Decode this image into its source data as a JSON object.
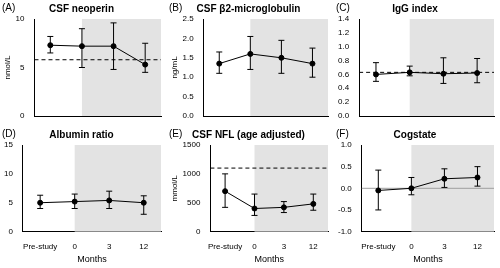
{
  "chart_data": [
    {
      "type": "line",
      "label": "(A)",
      "title": "CSF neoperin",
      "y_label": "nmol/L",
      "categories": [
        "Pre-study",
        "0",
        "3",
        "12"
      ],
      "values": [
        7.3,
        7.2,
        7.2,
        5.3
      ],
      "error_low": [
        6.5,
        5.0,
        4.8,
        4.5
      ],
      "error_high": [
        8.2,
        9.0,
        9.6,
        7.5
      ],
      "color": "#000000",
      "marker": "circle",
      "ylim": [
        0,
        10
      ],
      "yticks": [
        0,
        5,
        10
      ],
      "reference_line": {
        "value": 5.8,
        "line_style": "dashed",
        "color": "#000000"
      },
      "shaded_region": {
        "from": "0",
        "color": "#e3e3e3"
      },
      "grid": false,
      "tick_labels": "y"
    },
    {
      "type": "line",
      "label": "(B)",
      "title": "CSF β2-microglobulin",
      "y_label": "ng/mL",
      "categories": [
        "Pre-study",
        "0",
        "3",
        "12"
      ],
      "values": [
        1.35,
        1.6,
        1.5,
        1.35
      ],
      "error_low": [
        1.1,
        1.2,
        1.1,
        1.0
      ],
      "error_high": [
        1.65,
        2.05,
        1.95,
        1.75
      ],
      "color": "#000000",
      "marker": "circle",
      "ylim": [
        0,
        2.5
      ],
      "yticks": [
        {
          "value": 0,
          "label": "0.0"
        },
        {
          "value": 0.5,
          "label": "0.5"
        },
        {
          "value": 1,
          "label": "1.0"
        },
        {
          "value": 1.5,
          "label": "1.5"
        },
        {
          "value": 2,
          "label": "2.0"
        },
        {
          "value": 2.5,
          "label": "2.5"
        }
      ],
      "shaded_region": {
        "from": "0",
        "color": "#e3e3e3"
      },
      "grid": false,
      "tick_labels": "y"
    },
    {
      "type": "line",
      "label": "(C)",
      "title": "IgG index",
      "categories": [
        "Pre-study",
        "0",
        "3",
        "12"
      ],
      "values": [
        0.6,
        0.63,
        0.61,
        0.62
      ],
      "error_low": [
        0.5,
        0.58,
        0.47,
        0.48
      ],
      "error_high": [
        0.77,
        0.72,
        0.84,
        0.83
      ],
      "color": "#000000",
      "marker": "circle",
      "ylim": [
        0,
        1.4
      ],
      "yticks": [
        {
          "value": 0,
          "label": "0.0"
        },
        {
          "value": 0.2,
          "label": "0.2"
        },
        {
          "value": 0.4,
          "label": "0.4"
        },
        {
          "value": 0.6,
          "label": "0.6"
        },
        {
          "value": 0.8,
          "label": "0.8"
        },
        {
          "value": 1,
          "label": "1.0"
        },
        {
          "value": 1.2,
          "label": "1.2"
        },
        {
          "value": 1.4,
          "label": "1.4"
        }
      ],
      "reference_line": {
        "value": 0.63,
        "line_style": "dashed",
        "color": "#000000"
      },
      "shaded_region": {
        "from": "0",
        "color": "#e3e3e3"
      },
      "grid": false,
      "tick_labels": "y"
    },
    {
      "type": "line",
      "label": "(D)",
      "title": "Albumin ratio",
      "x_label": "Months",
      "categories": [
        "Pre-study",
        "0",
        "3",
        "12"
      ],
      "values": [
        5.0,
        5.2,
        5.4,
        5.0
      ],
      "error_low": [
        4.0,
        4.0,
        4.0,
        3.0
      ],
      "error_high": [
        6.3,
        6.5,
        7.0,
        6.2
      ],
      "color": "#000000",
      "marker": "circle",
      "ylim": [
        0,
        15
      ],
      "yticks": [
        0,
        5,
        10,
        15
      ],
      "shaded_region": {
        "from": "0",
        "color": "#e3e3e3"
      },
      "grid": false
    },
    {
      "type": "line",
      "label": "(E)",
      "title": "CSF NFL (age adjusted)",
      "x_label": "Months",
      "y_label": "mmol/L",
      "categories": [
        "Pre-study",
        "0",
        "3",
        "12"
      ],
      "values": [
        700,
        400,
        420,
        480
      ],
      "error_low": [
        420,
        280,
        330,
        370
      ],
      "error_high": [
        1000,
        650,
        520,
        650
      ],
      "color": "#000000",
      "marker": "circle",
      "ylim": [
        0,
        1500
      ],
      "yticks": [
        0,
        500,
        1000,
        1500
      ],
      "reference_line": {
        "value": 1100,
        "line_style": "dashed",
        "color": "#000000"
      },
      "shaded_region": {
        "from": "0",
        "color": "#e3e3e3"
      },
      "grid": false
    },
    {
      "type": "line",
      "label": "(F)",
      "title": "Cogstate",
      "x_label": "Months",
      "categories": [
        "Pre-study",
        "0",
        "3",
        "12"
      ],
      "values": [
        -0.05,
        0.0,
        0.22,
        0.25
      ],
      "error_low": [
        -0.5,
        -0.15,
        0.02,
        0.05
      ],
      "error_high": [
        0.42,
        0.25,
        0.45,
        0.5
      ],
      "color": "#000000",
      "marker": "circle",
      "ylim": [
        -1,
        1
      ],
      "yticks": [
        {
          "value": -1,
          "label": "-1.0"
        },
        {
          "value": -0.5,
          "label": "-0.5"
        },
        {
          "value": 0,
          "label": "0.0"
        },
        {
          "value": 0.5,
          "label": "0.5"
        },
        {
          "value": 1,
          "label": "1.0"
        }
      ],
      "reference_line": {
        "value": 0,
        "line_style": "solid",
        "color": "#9e9e9e"
      },
      "shaded_region": {
        "from": "0",
        "color": "#e3e3e3"
      },
      "grid": false
    }
  ]
}
